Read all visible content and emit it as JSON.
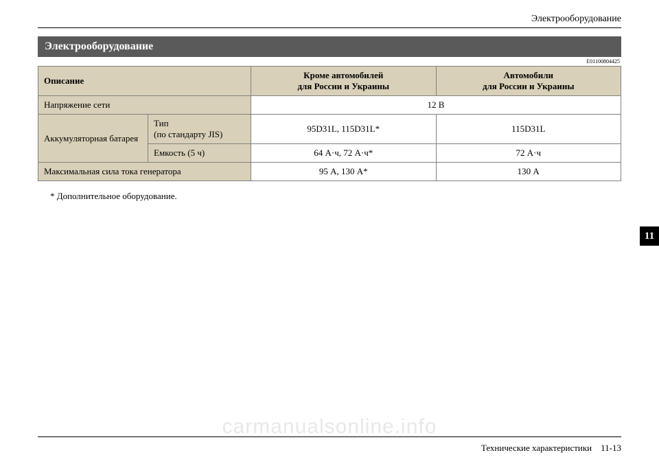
{
  "header": {
    "top_right": "Электрооборудование",
    "section_title": "Электрооборудование",
    "doc_code": "E01100804425"
  },
  "table": {
    "columns": {
      "desc": "Описание",
      "col1_line1": "Кроме автомобилей",
      "col1_line2": "для России и Украины",
      "col2_line1": "Автомобили",
      "col2_line2": "для России и Украины"
    },
    "rows": {
      "voltage_label": "Напряжение сети",
      "voltage_value": "12 В",
      "battery_label": "Аккумуляторная батарея",
      "battery_type_label_line1": "Тип",
      "battery_type_label_line2": "(по стандарту JIS)",
      "battery_type_col1": "95D31L, 115D31L*",
      "battery_type_col2": "115D31L",
      "battery_cap_label": "Емкость (5 ч)",
      "battery_cap_col1": "64 А·ч, 72 А·ч*",
      "battery_cap_col2": "72 А·ч",
      "gen_label": "Максимальная сила тока генератора",
      "gen_col1": "95 А, 130 А*",
      "gen_col2": "130 А"
    },
    "styling": {
      "header_bg": "#d8d0b8",
      "border_color": "#808080",
      "font_size": 13
    }
  },
  "footnote": "* Дополнительное оборудование.",
  "side_tab": "11",
  "footer": {
    "section": "Технические характеристики",
    "page": "11-13"
  },
  "watermark": "carmanualsonline.info"
}
